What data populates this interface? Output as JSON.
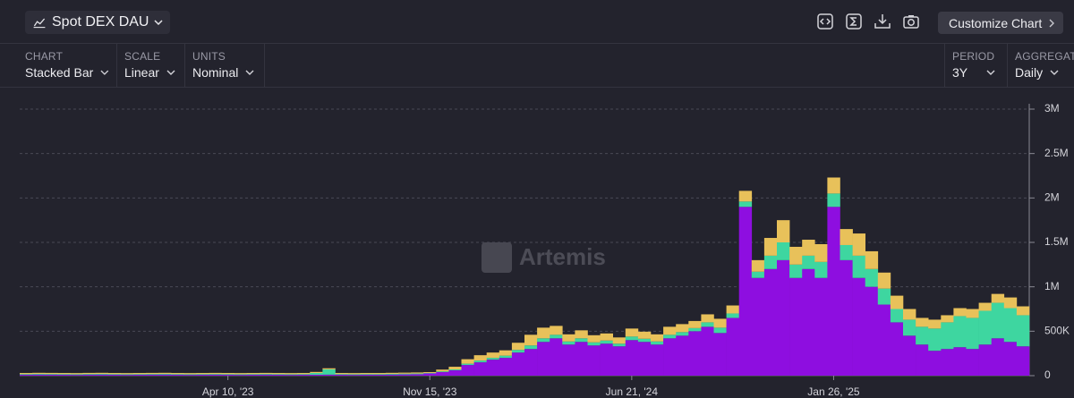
{
  "header": {
    "title": "Spot DEX DAU",
    "button": "Customize Chart"
  },
  "controls": [
    {
      "label": "CHART",
      "value": "Stacked Bar"
    },
    {
      "label": "SCALE",
      "value": "Linear"
    },
    {
      "label": "UNITS",
      "value": "Nominal"
    },
    {
      "label": "PERIOD",
      "value": "3Y"
    },
    {
      "label": "AGGREGATE",
      "value": "Daily"
    }
  ],
  "watermark": "Artemis",
  "chart_data": {
    "type": "stacked_bar",
    "categories": [
      null,
      null,
      null,
      null,
      null,
      null,
      null,
      null,
      null,
      null,
      null,
      null,
      null,
      null,
      null,
      null,
      "Apr 10, '23",
      null,
      null,
      null,
      null,
      null,
      null,
      null,
      null,
      null,
      null,
      null,
      null,
      null,
      null,
      null,
      "Nov 15, '23",
      null,
      null,
      null,
      null,
      null,
      null,
      null,
      null,
      null,
      null,
      null,
      null,
      null,
      null,
      null,
      "Jun 21, '24",
      null,
      null,
      null,
      null,
      null,
      null,
      null,
      null,
      null,
      null,
      null,
      null,
      null,
      null,
      null,
      "Jan 26, '25",
      null,
      null,
      null,
      null,
      null,
      null,
      null,
      null,
      null,
      null,
      null,
      null,
      null,
      null,
      null
    ],
    "series": [
      {
        "color": "#8e0ee0",
        "values": [
          10000,
          12000,
          11000,
          10000,
          9000,
          11000,
          12000,
          10000,
          9000,
          10000,
          11000,
          12000,
          10000,
          9000,
          10000,
          11000,
          10000,
          9000,
          10000,
          11000,
          10000,
          9000,
          10000,
          10000,
          11000,
          10000,
          9000,
          10000,
          10000,
          12000,
          14000,
          16000,
          25000,
          40000,
          60000,
          120000,
          150000,
          180000,
          200000,
          260000,
          300000,
          380000,
          420000,
          350000,
          380000,
          340000,
          360000,
          330000,
          400000,
          380000,
          350000,
          420000,
          450000,
          500000,
          550000,
          480000,
          650000,
          1900000,
          1100000,
          1200000,
          1300000,
          1100000,
          1200000,
          1100000,
          1900000,
          1300000,
          1100000,
          1000000,
          800000,
          600000,
          450000,
          350000,
          280000,
          300000,
          320000,
          300000,
          350000,
          420000,
          380000,
          330000
        ]
      },
      {
        "color": "#3ed6a0",
        "values": [
          8000,
          8000,
          8000,
          8000,
          8000,
          8000,
          8000,
          8000,
          8000,
          8000,
          8000,
          8000,
          8000,
          8000,
          8000,
          8000,
          8000,
          8000,
          8000,
          8000,
          8000,
          8000,
          8000,
          20000,
          60000,
          8000,
          8000,
          8000,
          8000,
          8000,
          8000,
          8000,
          5000,
          8000,
          10000,
          15000,
          20000,
          20000,
          25000,
          30000,
          40000,
          40000,
          40000,
          35000,
          40000,
          35000,
          35000,
          30000,
          40000,
          35000,
          35000,
          40000,
          40000,
          35000,
          50000,
          60000,
          50000,
          60000,
          70000,
          150000,
          200000,
          150000,
          150000,
          180000,
          150000,
          170000,
          250000,
          200000,
          180000,
          150000,
          180000,
          200000,
          250000,
          300000,
          350000,
          350000,
          380000,
          400000,
          380000,
          350000
        ]
      },
      {
        "color": "#e8c15a",
        "values": [
          12000,
          12000,
          12000,
          12000,
          12000,
          12000,
          12000,
          12000,
          12000,
          12000,
          12000,
          12000,
          12000,
          12000,
          12000,
          12000,
          12000,
          12000,
          12000,
          12000,
          12000,
          12000,
          12000,
          12000,
          12000,
          12000,
          12000,
          12000,
          12000,
          12000,
          12000,
          12000,
          10000,
          20000,
          30000,
          50000,
          60000,
          60000,
          60000,
          80000,
          120000,
          120000,
          100000,
          80000,
          90000,
          80000,
          80000,
          70000,
          90000,
          80000,
          80000,
          90000,
          90000,
          80000,
          90000,
          100000,
          90000,
          120000,
          130000,
          200000,
          250000,
          200000,
          180000,
          200000,
          180000,
          180000,
          250000,
          200000,
          180000,
          150000,
          120000,
          100000,
          100000,
          80000,
          90000,
          100000,
          90000,
          100000,
          120000,
          100000
        ]
      }
    ],
    "ylim": [
      0,
      3000000
    ],
    "yticks": [
      0,
      {
        "value": 500000,
        "label": "500K"
      },
      {
        "value": 1000000,
        "label": "1M"
      },
      {
        "value": 1500000,
        "label": "1.5M"
      },
      {
        "value": 2000000,
        "label": "2M"
      },
      {
        "value": 2500000,
        "label": "2.5M"
      },
      {
        "value": 3000000,
        "label": "3M"
      }
    ],
    "grid": true
  }
}
